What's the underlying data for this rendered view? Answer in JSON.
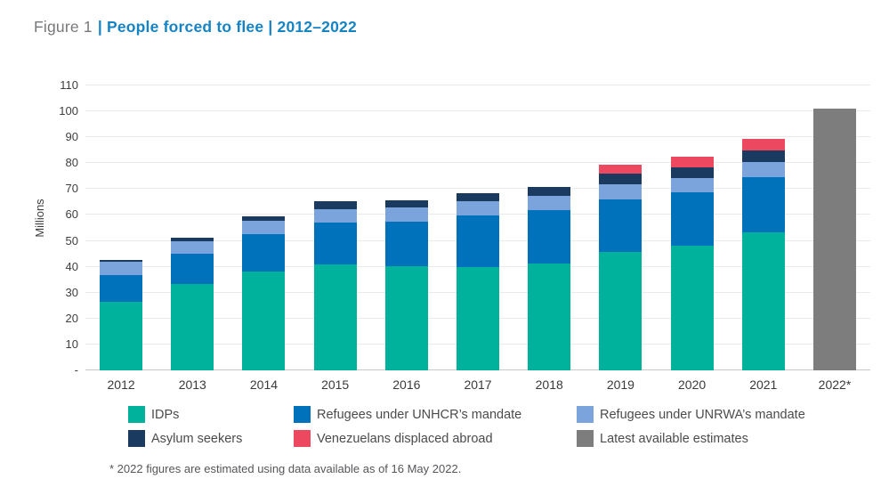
{
  "title": {
    "figure_label": "Figure 1",
    "styled": "| People forced to flee | 2012–2022"
  },
  "footnote": "* 2022 figures are estimated using data available as of 16 May 2022.",
  "colors": {
    "title_gray": "#77787B",
    "title_blue": "#1583C4",
    "gridline": "#EAEAEA",
    "axis_line": "#C8C8C8",
    "tick_text": "#3E3E40"
  },
  "chart_data": {
    "type": "bar",
    "stacked": true,
    "title": "People forced to flee | 2012–2022",
    "xlabel": "",
    "ylabel": "Millions",
    "unit": "millions of people",
    "grid": "horizontal",
    "legend_position": "bottom",
    "ylim": [
      0,
      115
    ],
    "categories": [
      "2012",
      "2013",
      "2014",
      "2015",
      "2016",
      "2017",
      "2018",
      "2019",
      "2020",
      "2021",
      "2022*"
    ],
    "series": [
      {
        "name": "IDPs",
        "color": "#00B19B",
        "values": [
          26.4,
          33.3,
          38.2,
          40.8,
          40.3,
          40.0,
          41.3,
          45.7,
          48.0,
          53.2,
          0
        ]
      },
      {
        "name": "Refugees under UNHCR’s mandate",
        "color": "#0072BC",
        "values": [
          10.5,
          11.7,
          14.4,
          16.1,
          17.2,
          19.9,
          20.4,
          20.4,
          20.7,
          21.3,
          0
        ]
      },
      {
        "name": "Refugees under UNRWA’s mandate",
        "color": "#7AA4DB",
        "values": [
          4.9,
          5.0,
          5.1,
          5.2,
          5.3,
          5.4,
          5.5,
          5.6,
          5.7,
          5.8,
          0
        ]
      },
      {
        "name": "Asylum seekers",
        "color": "#1A3A60",
        "values": [
          0.9,
          1.2,
          1.8,
          3.2,
          2.8,
          3.1,
          3.5,
          4.2,
          4.1,
          4.6,
          0
        ]
      },
      {
        "name": "Venezuelans displaced abroad",
        "color": "#EC4961",
        "values": [
          0,
          0,
          0,
          0,
          0,
          0,
          0,
          3.6,
          3.9,
          4.4,
          0
        ]
      },
      {
        "name": "Latest available estimates",
        "color": "#7D7D7D",
        "values": [
          0,
          0,
          0,
          0,
          0,
          0,
          0,
          0,
          0,
          0,
          101
        ]
      }
    ],
    "totals": [
      42.7,
      51.2,
      59.5,
      65.3,
      65.6,
      68.4,
      70.7,
      79.5,
      82.4,
      89.3,
      101
    ],
    "yticks": [
      {
        "value": 110,
        "label": "110"
      },
      {
        "value": 100,
        "label": "100"
      },
      {
        "value": 90,
        "label": "90"
      },
      {
        "value": 80,
        "label": "80"
      },
      {
        "value": 70,
        "label": "70"
      },
      {
        "value": 60,
        "label": "60"
      },
      {
        "value": 50,
        "label": "50"
      },
      {
        "value": 40,
        "label": "40"
      },
      {
        "value": 30,
        "label": "30"
      },
      {
        "value": 20,
        "label": "20"
      },
      {
        "value": 10,
        "label": "10"
      },
      {
        "value": 0,
        "label": "-"
      }
    ]
  },
  "legend": {
    "items": [
      {
        "label": "IDPs",
        "color": "#00B19B"
      },
      {
        "label": "Refugees under UNHCR’s mandate",
        "color": "#0072BC"
      },
      {
        "label": "Refugees under UNRWA’s mandate",
        "color": "#7AA4DB"
      },
      {
        "label": "Asylum seekers",
        "color": "#1A3A60"
      },
      {
        "label": "Venezuelans displaced abroad",
        "color": "#EC4961"
      },
      {
        "label": "Latest available estimates",
        "color": "#7D7D7D"
      }
    ]
  }
}
